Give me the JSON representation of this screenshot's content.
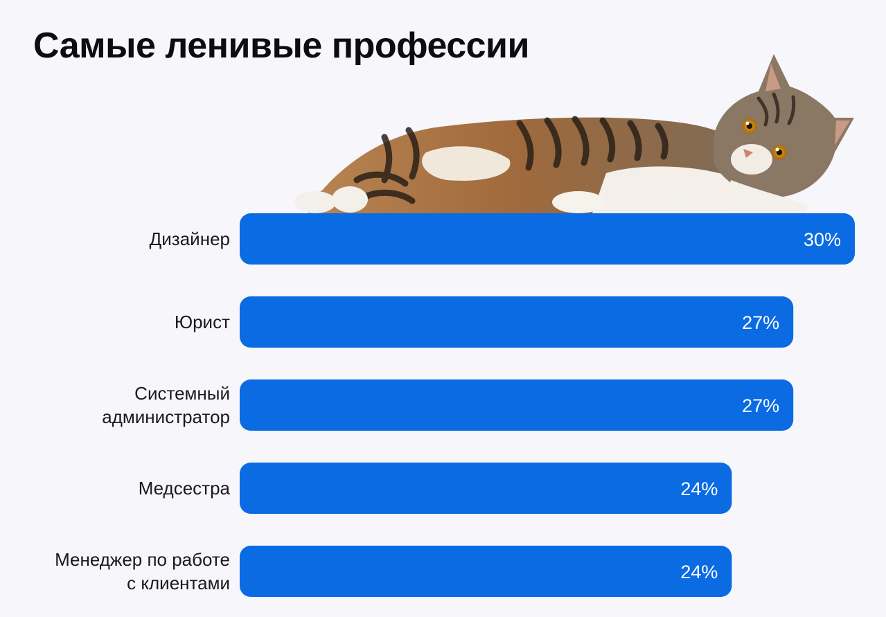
{
  "chart_data": {
    "type": "bar",
    "orientation": "horizontal",
    "title": "Самые ленивые профессии",
    "categories": [
      [
        "Дизайнер"
      ],
      [
        "Юрист"
      ],
      [
        "Системный",
        "администратор"
      ],
      [
        "Медсестра"
      ],
      [
        "Менеджер по работе",
        "с клиентами"
      ]
    ],
    "values": [
      30,
      27,
      27,
      24,
      24
    ],
    "value_labels": [
      "30%",
      "27%",
      "27%",
      "24%",
      "24%"
    ],
    "xlim": [
      0,
      30
    ],
    "grid": false,
    "legend": "none"
  },
  "colors": {
    "bar": "#0a6be3",
    "background": "#f6f6fb",
    "label": "#1a1a1a",
    "value_label": "#ffffff"
  },
  "decoration": {
    "icon": "lying-tabby-cat-icon"
  }
}
